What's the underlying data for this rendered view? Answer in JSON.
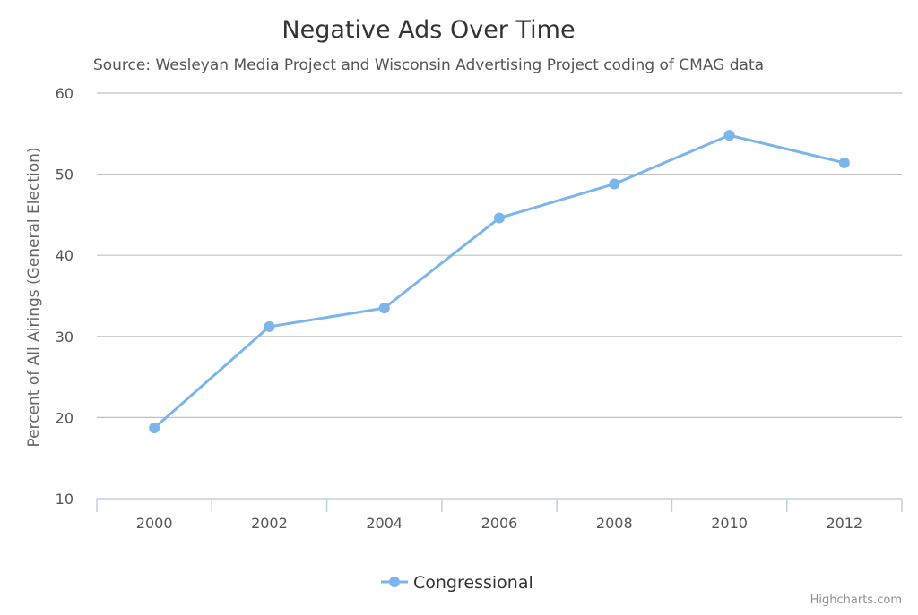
{
  "chart_data": {
    "type": "line",
    "title": "Negative Ads Over Time",
    "subtitle": "Source: Wesleyan Media Project and Wisconsin Advertising Project coding of CMAG data",
    "xlabel": "",
    "ylabel": "Percent of All Airings (General Election)",
    "categories": [
      "2000",
      "2002",
      "2004",
      "2006",
      "2008",
      "2010",
      "2012"
    ],
    "yticks": [
      10,
      20,
      30,
      40,
      50,
      60
    ],
    "ylim": [
      10,
      60
    ],
    "grid": true,
    "legend_position": "bottom-center",
    "series": [
      {
        "name": "Congressional",
        "values": [
          18.7,
          31.2,
          33.5,
          44.6,
          48.8,
          54.8,
          51.4
        ],
        "color": "#7cb5ec"
      }
    ]
  },
  "credits": "Highcharts.com"
}
